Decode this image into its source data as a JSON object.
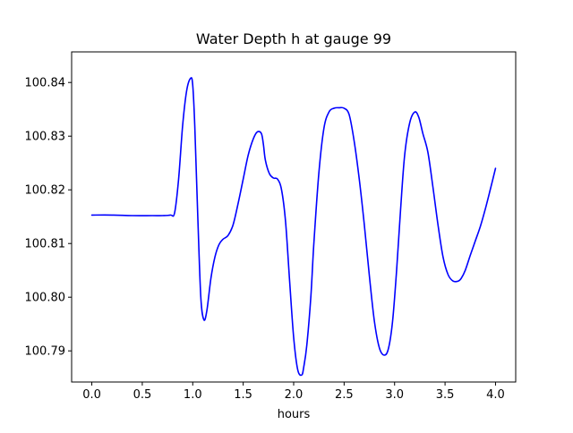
{
  "chart_data": {
    "type": "line",
    "title": "Water Depth h at gauge 99",
    "xlabel": "hours",
    "ylabel": "",
    "xlim": [
      -0.2,
      4.2
    ],
    "ylim": [
      100.7842,
      100.8457
    ],
    "xticks": [
      0.0,
      0.5,
      1.0,
      1.5,
      2.0,
      2.5,
      3.0,
      3.5,
      4.0
    ],
    "xtick_labels": [
      "0.0",
      "0.5",
      "1.0",
      "1.5",
      "2.0",
      "2.5",
      "3.0",
      "3.5",
      "4.0"
    ],
    "yticks": [
      100.79,
      100.8,
      100.81,
      100.82,
      100.83,
      100.84
    ],
    "ytick_labels": [
      "100.79",
      "100.80",
      "100.81",
      "100.82",
      "100.83",
      "100.84"
    ],
    "grid": false,
    "line_color": "#0000ff",
    "series": [
      {
        "x": [
          0.0,
          0.2,
          0.4,
          0.6,
          0.7,
          0.78,
          0.82,
          0.86,
          0.9,
          0.94,
          0.98,
          1.0,
          1.02,
          1.05,
          1.08,
          1.11,
          1.14,
          1.18,
          1.22,
          1.26,
          1.3,
          1.35,
          1.4,
          1.45,
          1.5,
          1.55,
          1.6,
          1.64,
          1.68,
          1.7,
          1.72,
          1.76,
          1.8,
          1.84,
          1.88,
          1.92,
          1.96,
          2.0,
          2.04,
          2.08,
          2.1,
          2.13,
          2.17,
          2.2,
          2.25,
          2.3,
          2.35,
          2.4,
          2.45,
          2.5,
          2.55,
          2.6,
          2.65,
          2.7,
          2.75,
          2.8,
          2.85,
          2.9,
          2.94,
          2.98,
          3.02,
          3.06,
          3.1,
          3.15,
          3.2,
          3.24,
          3.28,
          3.33,
          3.38,
          3.43,
          3.48,
          3.53,
          3.58,
          3.63,
          3.66,
          3.7,
          3.75,
          3.8,
          3.85,
          3.9,
          3.95,
          4.0
        ],
        "y": [
          100.8153,
          100.8153,
          100.8152,
          100.8152,
          100.8152,
          100.8153,
          100.8157,
          100.822,
          100.832,
          100.8385,
          100.8408,
          100.8395,
          100.832,
          100.815,
          100.8,
          100.7958,
          100.7975,
          100.8035,
          100.8075,
          100.8098,
          100.8108,
          100.8115,
          100.8135,
          100.8175,
          100.822,
          100.8265,
          100.8295,
          100.8308,
          100.8305,
          100.8285,
          100.8255,
          100.823,
          100.8222,
          100.822,
          100.82,
          100.814,
          100.803,
          100.7925,
          100.7865,
          100.7855,
          100.787,
          100.791,
          100.8,
          100.81,
          100.8232,
          100.8315,
          100.8345,
          100.8352,
          100.8353,
          100.8352,
          100.834,
          100.829,
          100.822,
          100.8135,
          100.804,
          100.7955,
          100.7905,
          100.7892,
          100.7905,
          100.7955,
          100.805,
          100.8165,
          100.8265,
          100.8325,
          100.8345,
          100.8335,
          100.8305,
          100.827,
          100.8205,
          100.8135,
          100.8075,
          100.8042,
          100.803,
          100.803,
          100.8035,
          100.805,
          100.8078,
          100.8105,
          100.8132,
          100.8165,
          100.8202,
          100.824
        ]
      }
    ]
  }
}
